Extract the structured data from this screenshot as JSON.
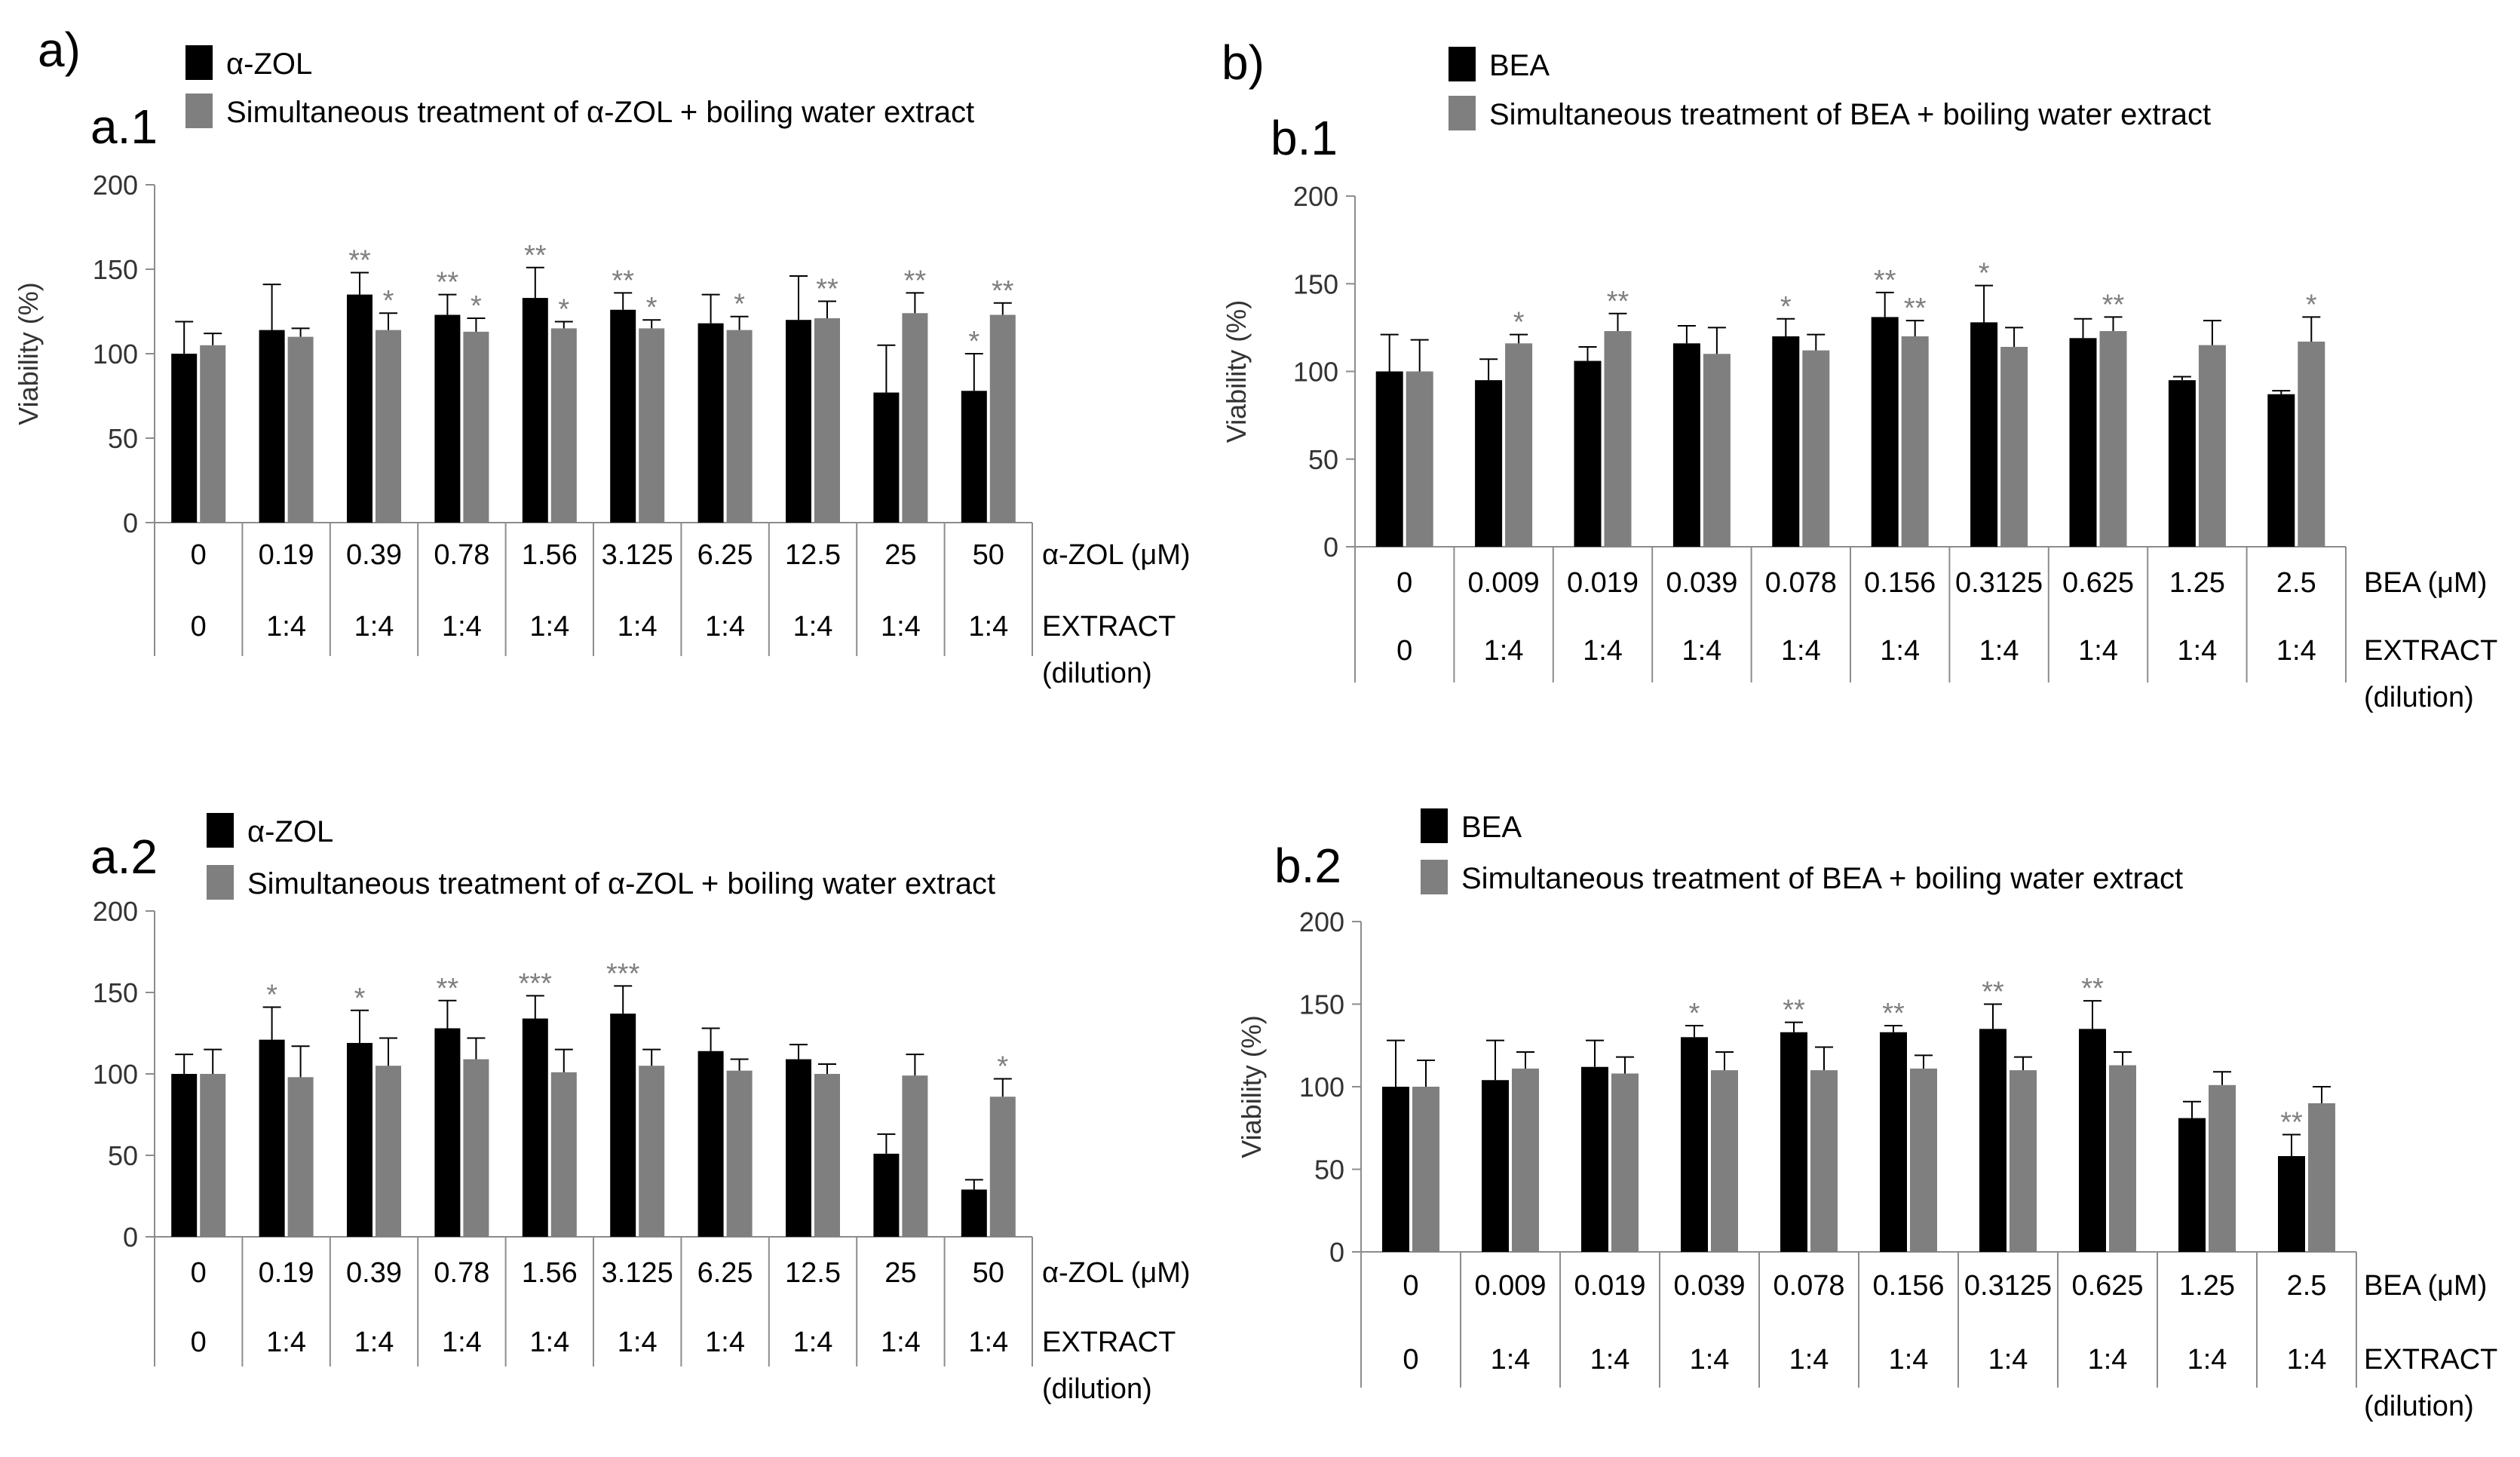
{
  "panel_labels": {
    "a": "a)",
    "b": "b)"
  },
  "chart_data": [
    {
      "id": "a1",
      "type": "bar",
      "panel_label": "a.1",
      "ylabel": "Viability (%)",
      "ylim": [
        0,
        200
      ],
      "yticks": [
        0,
        50,
        100,
        150,
        200
      ],
      "row_labels": [
        "α-ZOL (μM)",
        "EXTRACT",
        "(dilution)"
      ],
      "categories": [
        "0",
        "0.19",
        "0.39",
        "0.78",
        "1.56",
        "3.125",
        "6.25",
        "12.5",
        "25",
        "50"
      ],
      "extract": [
        "0",
        "1:4",
        "1:4",
        "1:4",
        "1:4",
        "1:4",
        "1:4",
        "1:4",
        "1:4",
        "1:4"
      ],
      "series": [
        {
          "name": "α-ZOL",
          "color": "#000000",
          "values": [
            100,
            114,
            135,
            123,
            133,
            126,
            118,
            120,
            77,
            78
          ],
          "errors": [
            19,
            27,
            13,
            12,
            18,
            10,
            17,
            26,
            28,
            22
          ],
          "sig": [
            "",
            "",
            "**",
            "**",
            "**",
            "**",
            "",
            "",
            "",
            "*"
          ]
        },
        {
          "name": "Simultaneous treatment of α-ZOL + boiling water extract",
          "color": "#7f7f7f",
          "values": [
            105,
            110,
            114,
            113,
            115,
            115,
            114,
            121,
            124,
            123
          ],
          "errors": [
            7,
            5,
            10,
            8,
            4,
            5,
            8,
            10,
            12,
            7
          ],
          "sig": [
            "",
            "",
            "*",
            "*",
            "*",
            "*",
            "*",
            "**",
            "**",
            "**"
          ]
        }
      ]
    },
    {
      "id": "b1",
      "type": "bar",
      "panel_label": "b.1",
      "ylabel": "Viability (%)",
      "ylim": [
        0,
        200
      ],
      "yticks": [
        0,
        50,
        100,
        150,
        200
      ],
      "row_labels": [
        "BEA (μM)",
        "EXTRACT",
        "(dilution)"
      ],
      "categories": [
        "0",
        "0.009",
        "0.019",
        "0.039",
        "0.078",
        "0.156",
        "0.3125",
        "0.625",
        "1.25",
        "2.5"
      ],
      "extract": [
        "0",
        "1:4",
        "1:4",
        "1:4",
        "1:4",
        "1:4",
        "1:4",
        "1:4",
        "1:4",
        "1:4"
      ],
      "series": [
        {
          "name": "BEA",
          "color": "#000000",
          "values": [
            100,
            95,
            106,
            116,
            120,
            131,
            128,
            119,
            95,
            87
          ],
          "errors": [
            21,
            12,
            8,
            10,
            10,
            14,
            21,
            11,
            2,
            2
          ],
          "sig": [
            "",
            "",
            "",
            "",
            "*",
            "**",
            "*",
            "",
            "",
            ""
          ]
        },
        {
          "name": "Simultaneous treatment of BEA + boiling water extract",
          "color": "#7f7f7f",
          "values": [
            100,
            116,
            123,
            110,
            112,
            120,
            114,
            123,
            115,
            117
          ],
          "errors": [
            18,
            5,
            10,
            15,
            9,
            9,
            11,
            8,
            14,
            14
          ],
          "sig": [
            "",
            "*",
            "**",
            "",
            "",
            "**",
            "",
            "**",
            "",
            "*"
          ]
        }
      ]
    },
    {
      "id": "a2",
      "type": "bar",
      "panel_label": "a.2",
      "ylabel": "",
      "ylim": [
        0,
        200
      ],
      "yticks": [
        0,
        50,
        100,
        150,
        200
      ],
      "row_labels": [
        "α-ZOL (μM)",
        "EXTRACT",
        "(dilution)"
      ],
      "categories": [
        "0",
        "0.19",
        "0.39",
        "0.78",
        "1.56",
        "3.125",
        "6.25",
        "12.5",
        "25",
        "50"
      ],
      "extract": [
        "0",
        "1:4",
        "1:4",
        "1:4",
        "1:4",
        "1:4",
        "1:4",
        "1:4",
        "1:4",
        "1:4"
      ],
      "series": [
        {
          "name": "α-ZOL",
          "color": "#000000",
          "values": [
            100,
            121,
            119,
            128,
            134,
            137,
            114,
            109,
            51,
            29
          ],
          "errors": [
            12,
            20,
            20,
            17,
            14,
            17,
            14,
            9,
            12,
            6
          ],
          "sig": [
            "",
            "*",
            "*",
            "**",
            "***",
            "***",
            "",
            "",
            "",
            ""
          ]
        },
        {
          "name": "Simultaneous treatment of α-ZOL + boiling water extract",
          "color": "#7f7f7f",
          "values": [
            100,
            98,
            105,
            109,
            101,
            105,
            102,
            100,
            99,
            86
          ],
          "errors": [
            15,
            19,
            17,
            13,
            14,
            10,
            7,
            6,
            13,
            11
          ],
          "sig": [
            "",
            "",
            "",
            "",
            "",
            "",
            "",
            "",
            "",
            "*"
          ]
        }
      ]
    },
    {
      "id": "b2",
      "type": "bar",
      "panel_label": "b.2",
      "ylabel": "Viability (%)",
      "ylim": [
        0,
        200
      ],
      "yticks": [
        0,
        50,
        100,
        150,
        200
      ],
      "row_labels": [
        "BEA (μM)",
        "EXTRACT",
        "(dilution)"
      ],
      "categories": [
        "0",
        "0.009",
        "0.019",
        "0.039",
        "0.078",
        "0.156",
        "0.3125",
        "0.625",
        "1.25",
        "2.5"
      ],
      "extract": [
        "0",
        "1:4",
        "1:4",
        "1:4",
        "1:4",
        "1:4",
        "1:4",
        "1:4",
        "1:4",
        "1:4"
      ],
      "series": [
        {
          "name": "BEA",
          "color": "#000000",
          "values": [
            100,
            104,
            112,
            130,
            133,
            133,
            135,
            135,
            81,
            58
          ],
          "errors": [
            28,
            24,
            16,
            7,
            6,
            4,
            15,
            17,
            10,
            13
          ],
          "sig": [
            "",
            "",
            "",
            "*",
            "**",
            "**",
            "**",
            "**",
            "",
            "**"
          ]
        },
        {
          "name": "Simultaneous treatment of BEA + boiling water extract",
          "color": "#7f7f7f",
          "values": [
            100,
            111,
            108,
            110,
            110,
            111,
            110,
            113,
            101,
            90
          ],
          "errors": [
            16,
            10,
            10,
            11,
            14,
            8,
            8,
            8,
            8,
            10
          ],
          "sig": [
            "",
            "",
            "",
            "",
            "",
            "",
            "",
            "",
            "",
            ""
          ]
        }
      ]
    }
  ]
}
